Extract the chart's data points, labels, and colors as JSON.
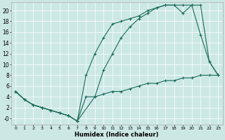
{
  "xlabel": "Humidex (Indice chaleur)",
  "bg_color": "#cce8e5",
  "line_color": "#1a6b5a",
  "grid_color": "#ffffff",
  "xlim": [
    -0.5,
    23.5
  ],
  "ylim": [
    -1.2,
    21.5
  ],
  "xticks": [
    0,
    1,
    2,
    3,
    4,
    5,
    6,
    7,
    8,
    9,
    10,
    11,
    12,
    13,
    14,
    15,
    16,
    17,
    18,
    19,
    20,
    21,
    22,
    23
  ],
  "yticks": [
    0,
    2,
    4,
    6,
    8,
    10,
    12,
    14,
    16,
    18,
    20
  ],
  "ytick_labels": [
    "-0",
    "2",
    "4",
    "6",
    "8",
    "10",
    "12",
    "14",
    "16",
    "18",
    "20"
  ],
  "line1_x": [
    0,
    1,
    2,
    3,
    4,
    5,
    6,
    7,
    8,
    9,
    10,
    11,
    12,
    13,
    14,
    15,
    16,
    17,
    18,
    19,
    20,
    21,
    22,
    23
  ],
  "line1_y": [
    5,
    3.5,
    2.5,
    2.0,
    1.5,
    1.0,
    0.5,
    -0.5,
    4.0,
    4.0,
    4.5,
    5.0,
    5.0,
    5.5,
    6.0,
    6.5,
    6.5,
    7.0,
    7.0,
    7.5,
    7.5,
    8.0,
    8.0,
    8.0
  ],
  "line2_x": [
    0,
    1,
    2,
    3,
    4,
    5,
    6,
    7,
    8,
    9,
    10,
    11,
    12,
    13,
    14,
    15,
    16,
    17,
    18,
    19,
    20,
    21,
    22,
    23
  ],
  "line2_y": [
    5,
    3.5,
    2.5,
    2.0,
    1.5,
    1.0,
    0.5,
    -0.5,
    8.0,
    12.0,
    15.0,
    17.5,
    18.0,
    18.5,
    19.0,
    20.0,
    20.5,
    21.0,
    21.0,
    21.0,
    21.0,
    15.5,
    10.5,
    8.0
  ],
  "line3_x": [
    0,
    1,
    2,
    3,
    4,
    5,
    6,
    7,
    9,
    10,
    11,
    12,
    13,
    14,
    15,
    16,
    17,
    18,
    19,
    20,
    21,
    22,
    23
  ],
  "line3_y": [
    5,
    3.5,
    2.5,
    2.0,
    1.5,
    1.0,
    0.5,
    -0.5,
    4.0,
    9.0,
    12.0,
    15.0,
    17.0,
    18.5,
    19.5,
    20.5,
    21.0,
    21.0,
    19.5,
    21.0,
    21.0,
    10.5,
    8.0
  ]
}
